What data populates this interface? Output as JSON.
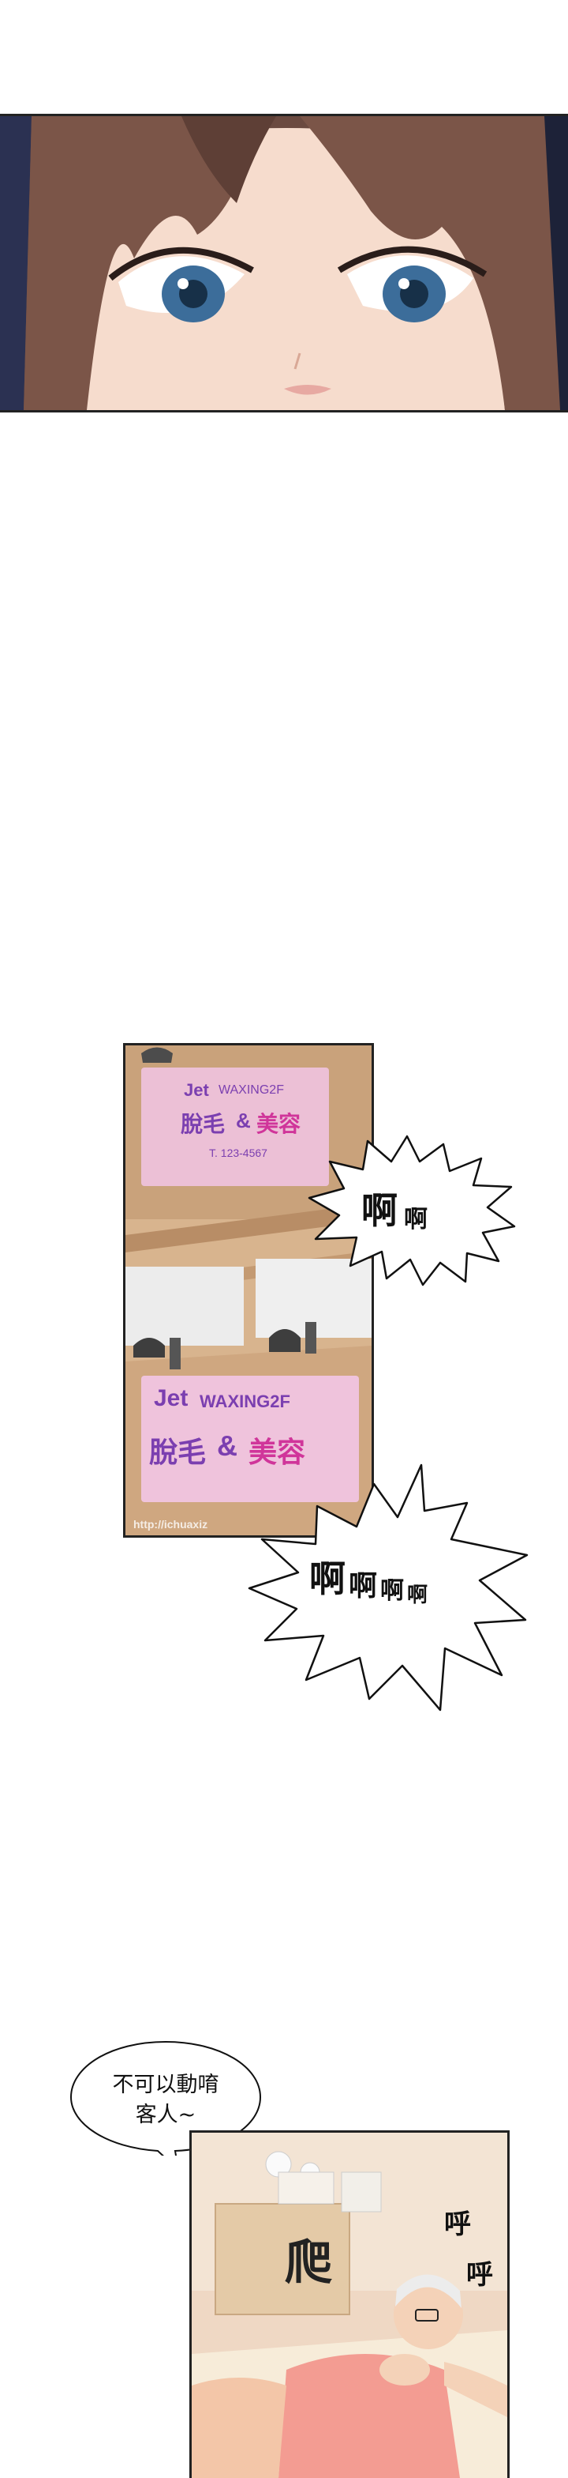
{
  "shop_panel": {
    "sign_top": {
      "brand": "Jet",
      "service": "WAXING2F",
      "chinese_left": "脫毛",
      "amp": "&",
      "chinese_right": "美容",
      "phone": "T. 123-4567"
    },
    "sign_bottom": {
      "brand": "Jet",
      "service": "WAXING2F",
      "chinese_left": "脫毛",
      "amp": "&",
      "chinese_right": "美容"
    },
    "watermark": "http://ichuaxiz"
  },
  "sfx_bubble_1": {
    "big": "啊",
    "small": "啊"
  },
  "sfx_bubble_2": {
    "big": "啊",
    "mid": "啊",
    "small1": "啊",
    "small2": "啊"
  },
  "speech_bubble": {
    "line1": "不可以動唷",
    "line2": "客人~"
  },
  "room_panel": {
    "sfx_crawl": "爬",
    "sfx_breath_1": "呼",
    "sfx_breath_2": "呼"
  },
  "colors": {
    "sign_pink": "#f2c6e6",
    "sign_purple": "#7b3fb0",
    "sign_magenta": "#d0359a",
    "wall_wood": "#d8b48e",
    "hair_brown": "#6b4a40",
    "eye_blue": "#3c6d9a",
    "skin": "#f6dccd"
  }
}
